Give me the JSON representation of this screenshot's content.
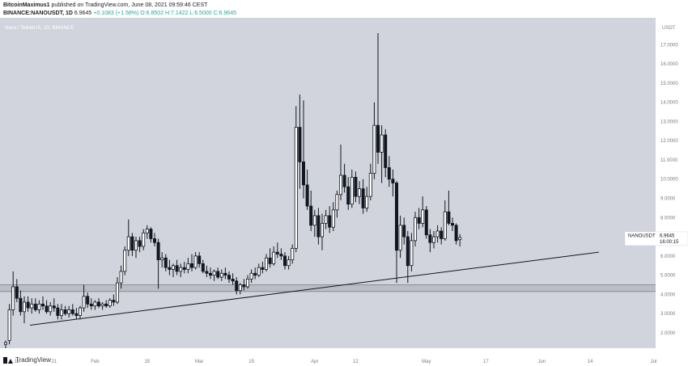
{
  "header": {
    "publisher": "BitcoinMaximus1",
    "published_text": "published on TradingView.com, June 08, 2021 09:59:46 CEST",
    "symbol_line": "BINANCE:NANOUSDT, 1D",
    "price": "6.9645",
    "change": "+0.1083 (+1.58%)",
    "ohlc": "O:6.8502 H:7.1422 L:6.5000 C:6.9645"
  },
  "chart_data": {
    "type": "candlestick",
    "title": "Nano / TetherUS, 1D, BINANCE",
    "y_axis_unit": "USDT",
    "ylim": [
      1.2,
      18.4
    ],
    "y_ticks": [
      "2.0000",
      "3.0000",
      "4.0000",
      "5.0000",
      "6.0000",
      "7.0000",
      "8.0000",
      "9.0000",
      "10.0000",
      "11.0000",
      "12.0000",
      "13.0000",
      "14.0000",
      "15.0000",
      "16.0000",
      "17.0000"
    ],
    "x_ticks": [
      "11",
      "21",
      "Feb",
      "15",
      "Mar",
      "15",
      "Apr",
      "12",
      "May",
      "17",
      "Jun",
      "14",
      "Jul"
    ],
    "price_label": {
      "symbol": "NANOUSDT",
      "price": "6.9645",
      "countdown": "16:00:15"
    },
    "support_zone": [
      4.15,
      4.5
    ],
    "trendline": {
      "start": {
        "date": "2021-01-08",
        "price": 2.4
      },
      "end": {
        "date": "2021-06-25",
        "price": 6.2
      }
    },
    "candles": [
      {
        "o": 1.4,
        "h": 1.6,
        "l": 1.2,
        "c": 1.5
      },
      {
        "o": 1.6,
        "h": 3.5,
        "l": 1.4,
        "c": 3.2
      },
      {
        "o": 3.2,
        "h": 5.2,
        "l": 2.9,
        "c": 4.4
      },
      {
        "o": 4.4,
        "h": 4.8,
        "l": 3.6,
        "c": 3.8
      },
      {
        "o": 3.8,
        "h": 4.2,
        "l": 2.9,
        "c": 3.1
      },
      {
        "o": 3.1,
        "h": 3.9,
        "l": 2.5,
        "c": 3.6
      },
      {
        "o": 3.6,
        "h": 3.9,
        "l": 3.1,
        "c": 3.3
      },
      {
        "o": 3.3,
        "h": 3.8,
        "l": 3.0,
        "c": 3.5
      },
      {
        "o": 3.5,
        "h": 3.8,
        "l": 3.1,
        "c": 3.2
      },
      {
        "o": 3.2,
        "h": 3.7,
        "l": 3.0,
        "c": 3.5
      },
      {
        "o": 3.5,
        "h": 3.9,
        "l": 3.2,
        "c": 3.4
      },
      {
        "o": 3.4,
        "h": 3.7,
        "l": 3.0,
        "c": 3.1
      },
      {
        "o": 3.1,
        "h": 3.6,
        "l": 2.9,
        "c": 3.4
      },
      {
        "o": 3.4,
        "h": 3.8,
        "l": 3.1,
        "c": 3.3
      },
      {
        "o": 3.3,
        "h": 3.5,
        "l": 2.7,
        "c": 2.9
      },
      {
        "o": 2.9,
        "h": 3.5,
        "l": 2.7,
        "c": 3.2
      },
      {
        "o": 3.2,
        "h": 3.4,
        "l": 2.9,
        "c": 3.0
      },
      {
        "o": 3.0,
        "h": 3.4,
        "l": 2.8,
        "c": 3.2
      },
      {
        "o": 3.2,
        "h": 3.5,
        "l": 2.9,
        "c": 3.0
      },
      {
        "o": 3.0,
        "h": 3.3,
        "l": 2.7,
        "c": 2.9
      },
      {
        "o": 2.9,
        "h": 3.4,
        "l": 2.7,
        "c": 3.3
      },
      {
        "o": 3.3,
        "h": 4.5,
        "l": 3.1,
        "c": 3.9
      },
      {
        "o": 3.9,
        "h": 4.1,
        "l": 3.3,
        "c": 3.5
      },
      {
        "o": 3.5,
        "h": 3.8,
        "l": 3.2,
        "c": 3.4
      },
      {
        "o": 3.4,
        "h": 3.7,
        "l": 3.2,
        "c": 3.6
      },
      {
        "o": 3.6,
        "h": 3.8,
        "l": 3.3,
        "c": 3.4
      },
      {
        "o": 3.4,
        "h": 3.6,
        "l": 3.2,
        "c": 3.5
      },
      {
        "o": 3.5,
        "h": 3.7,
        "l": 3.3,
        "c": 3.4
      },
      {
        "o": 3.4,
        "h": 3.8,
        "l": 3.3,
        "c": 3.7
      },
      {
        "o": 3.7,
        "h": 4.0,
        "l": 3.4,
        "c": 3.6
      },
      {
        "o": 3.6,
        "h": 4.9,
        "l": 3.5,
        "c": 4.6
      },
      {
        "o": 4.6,
        "h": 5.5,
        "l": 4.3,
        "c": 5.2
      },
      {
        "o": 5.2,
        "h": 6.5,
        "l": 5.0,
        "c": 6.3
      },
      {
        "o": 6.3,
        "h": 7.9,
        "l": 6.0,
        "c": 7.0
      },
      {
        "o": 7.0,
        "h": 7.2,
        "l": 6.0,
        "c": 6.3
      },
      {
        "o": 6.3,
        "h": 7.0,
        "l": 5.9,
        "c": 6.8
      },
      {
        "o": 6.8,
        "h": 7.0,
        "l": 6.2,
        "c": 6.5
      },
      {
        "o": 6.5,
        "h": 7.4,
        "l": 6.3,
        "c": 7.2
      },
      {
        "o": 7.2,
        "h": 7.6,
        "l": 6.9,
        "c": 7.4
      },
      {
        "o": 7.4,
        "h": 7.5,
        "l": 6.7,
        "c": 6.9
      },
      {
        "o": 6.9,
        "h": 7.2,
        "l": 6.5,
        "c": 6.7
      },
      {
        "o": 6.7,
        "h": 6.9,
        "l": 4.3,
        "c": 5.8
      },
      {
        "o": 5.8,
        "h": 6.2,
        "l": 5.4,
        "c": 5.9
      },
      {
        "o": 5.9,
        "h": 6.1,
        "l": 5.2,
        "c": 5.4
      },
      {
        "o": 5.4,
        "h": 5.8,
        "l": 5.0,
        "c": 5.3
      },
      {
        "o": 5.3,
        "h": 5.6,
        "l": 4.9,
        "c": 5.5
      },
      {
        "o": 5.5,
        "h": 5.8,
        "l": 5.0,
        "c": 5.2
      },
      {
        "o": 5.2,
        "h": 5.6,
        "l": 4.9,
        "c": 5.4
      },
      {
        "o": 5.4,
        "h": 5.7,
        "l": 5.1,
        "c": 5.3
      },
      {
        "o": 5.3,
        "h": 5.9,
        "l": 5.1,
        "c": 5.6
      },
      {
        "o": 5.6,
        "h": 6.1,
        "l": 5.2,
        "c": 5.4
      },
      {
        "o": 5.4,
        "h": 6.2,
        "l": 5.3,
        "c": 6.0
      },
      {
        "o": 6.0,
        "h": 6.2,
        "l": 5.4,
        "c": 5.6
      },
      {
        "o": 5.6,
        "h": 5.8,
        "l": 5.1,
        "c": 5.2
      },
      {
        "o": 5.2,
        "h": 5.5,
        "l": 4.9,
        "c": 5.1
      },
      {
        "o": 5.1,
        "h": 5.4,
        "l": 4.8,
        "c": 5.0
      },
      {
        "o": 5.0,
        "h": 5.3,
        "l": 4.7,
        "c": 5.2
      },
      {
        "o": 5.2,
        "h": 5.4,
        "l": 4.8,
        "c": 4.9
      },
      {
        "o": 4.9,
        "h": 5.3,
        "l": 4.7,
        "c": 5.1
      },
      {
        "o": 5.1,
        "h": 5.4,
        "l": 4.8,
        "c": 5.0
      },
      {
        "o": 5.0,
        "h": 5.2,
        "l": 4.6,
        "c": 4.8
      },
      {
        "o": 4.8,
        "h": 5.1,
        "l": 4.5,
        "c": 4.7
      },
      {
        "o": 4.7,
        "h": 4.9,
        "l": 4.0,
        "c": 4.2
      },
      {
        "o": 4.2,
        "h": 4.6,
        "l": 4.0,
        "c": 4.5
      },
      {
        "o": 4.5,
        "h": 4.8,
        "l": 4.2,
        "c": 4.4
      },
      {
        "o": 4.4,
        "h": 5.0,
        "l": 4.3,
        "c": 4.8
      },
      {
        "o": 4.8,
        "h": 5.3,
        "l": 4.6,
        "c": 5.1
      },
      {
        "o": 5.1,
        "h": 5.4,
        "l": 4.8,
        "c": 5.0
      },
      {
        "o": 5.0,
        "h": 5.6,
        "l": 4.9,
        "c": 5.4
      },
      {
        "o": 5.4,
        "h": 5.7,
        "l": 5.1,
        "c": 5.3
      },
      {
        "o": 5.3,
        "h": 6.1,
        "l": 5.2,
        "c": 5.9
      },
      {
        "o": 5.9,
        "h": 6.4,
        "l": 5.4,
        "c": 5.6
      },
      {
        "o": 5.6,
        "h": 6.5,
        "l": 5.5,
        "c": 6.2
      },
      {
        "o": 6.2,
        "h": 6.7,
        "l": 5.9,
        "c": 6.1
      },
      {
        "o": 6.1,
        "h": 6.4,
        "l": 5.8,
        "c": 6.0
      },
      {
        "o": 6.0,
        "h": 6.2,
        "l": 5.3,
        "c": 5.5
      },
      {
        "o": 5.5,
        "h": 6.0,
        "l": 5.3,
        "c": 5.8
      },
      {
        "o": 5.8,
        "h": 6.6,
        "l": 5.6,
        "c": 6.4
      },
      {
        "o": 6.4,
        "h": 13.8,
        "l": 6.2,
        "c": 12.7
      },
      {
        "o": 12.7,
        "h": 14.4,
        "l": 9.5,
        "c": 10.9
      },
      {
        "o": 10.9,
        "h": 14.1,
        "l": 9.0,
        "c": 9.7
      },
      {
        "o": 9.7,
        "h": 10.5,
        "l": 8.4,
        "c": 8.6
      },
      {
        "o": 8.6,
        "h": 9.4,
        "l": 7.3,
        "c": 7.6
      },
      {
        "o": 7.6,
        "h": 8.4,
        "l": 7.0,
        "c": 8.1
      },
      {
        "o": 8.1,
        "h": 8.5,
        "l": 6.6,
        "c": 7.0
      },
      {
        "o": 7.0,
        "h": 8.2,
        "l": 6.3,
        "c": 7.7
      },
      {
        "o": 7.7,
        "h": 8.4,
        "l": 7.4,
        "c": 8.1
      },
      {
        "o": 8.1,
        "h": 8.6,
        "l": 7.2,
        "c": 7.5
      },
      {
        "o": 7.5,
        "h": 8.8,
        "l": 7.3,
        "c": 8.4
      },
      {
        "o": 8.4,
        "h": 9.4,
        "l": 8.0,
        "c": 9.2
      },
      {
        "o": 9.2,
        "h": 11.8,
        "l": 8.9,
        "c": 10.2
      },
      {
        "o": 10.2,
        "h": 10.8,
        "l": 9.3,
        "c": 9.6
      },
      {
        "o": 9.6,
        "h": 10.1,
        "l": 8.4,
        "c": 8.7
      },
      {
        "o": 8.7,
        "h": 10.5,
        "l": 8.5,
        "c": 10.1
      },
      {
        "o": 10.1,
        "h": 10.4,
        "l": 8.8,
        "c": 9.1
      },
      {
        "o": 9.1,
        "h": 9.9,
        "l": 8.7,
        "c": 9.5
      },
      {
        "o": 9.5,
        "h": 10.0,
        "l": 8.2,
        "c": 8.5
      },
      {
        "o": 8.5,
        "h": 9.6,
        "l": 8.3,
        "c": 9.1
      },
      {
        "o": 9.1,
        "h": 10.8,
        "l": 8.9,
        "c": 10.3
      },
      {
        "o": 10.3,
        "h": 14.0,
        "l": 10.0,
        "c": 12.8
      },
      {
        "o": 12.8,
        "h": 17.6,
        "l": 10.8,
        "c": 11.4
      },
      {
        "o": 11.4,
        "h": 12.8,
        "l": 9.8,
        "c": 12.3
      },
      {
        "o": 12.3,
        "h": 12.6,
        "l": 10.1,
        "c": 10.6
      },
      {
        "o": 10.6,
        "h": 11.2,
        "l": 9.6,
        "c": 10.0
      },
      {
        "o": 10.0,
        "h": 10.5,
        "l": 9.1,
        "c": 9.8
      },
      {
        "o": 9.8,
        "h": 9.9,
        "l": 4.6,
        "c": 6.3
      },
      {
        "o": 6.3,
        "h": 8.1,
        "l": 5.9,
        "c": 7.6
      },
      {
        "o": 7.6,
        "h": 8.0,
        "l": 6.6,
        "c": 7.0
      },
      {
        "o": 7.0,
        "h": 7.3,
        "l": 4.6,
        "c": 5.5
      },
      {
        "o": 5.5,
        "h": 7.2,
        "l": 5.2,
        "c": 6.8
      },
      {
        "o": 6.8,
        "h": 8.3,
        "l": 6.5,
        "c": 8.0
      },
      {
        "o": 8.0,
        "h": 8.5,
        "l": 7.4,
        "c": 7.7
      },
      {
        "o": 7.7,
        "h": 9.1,
        "l": 7.5,
        "c": 8.4
      },
      {
        "o": 8.4,
        "h": 8.6,
        "l": 6.9,
        "c": 7.1
      },
      {
        "o": 7.1,
        "h": 7.4,
        "l": 6.2,
        "c": 6.7
      },
      {
        "o": 6.7,
        "h": 7.3,
        "l": 6.4,
        "c": 7.0
      },
      {
        "o": 7.0,
        "h": 7.6,
        "l": 6.7,
        "c": 7.3
      },
      {
        "o": 7.3,
        "h": 7.5,
        "l": 6.6,
        "c": 6.9
      },
      {
        "o": 6.9,
        "h": 8.9,
        "l": 6.8,
        "c": 8.3
      },
      {
        "o": 8.3,
        "h": 9.4,
        "l": 7.6,
        "c": 7.7
      },
      {
        "o": 7.7,
        "h": 8.0,
        "l": 7.3,
        "c": 7.6
      },
      {
        "o": 7.6,
        "h": 7.7,
        "l": 6.6,
        "c": 6.8
      },
      {
        "o": 6.85,
        "h": 7.14,
        "l": 6.5,
        "c": 6.96
      }
    ]
  },
  "footer": {
    "brand": "TradingView"
  },
  "colors": {
    "chart_bg": "#d1d4dc",
    "axis_bg": "#ffffff",
    "candle_body": "#131722",
    "candle_up_fill": "#ffffff",
    "support_zone": "#b2b5be"
  }
}
